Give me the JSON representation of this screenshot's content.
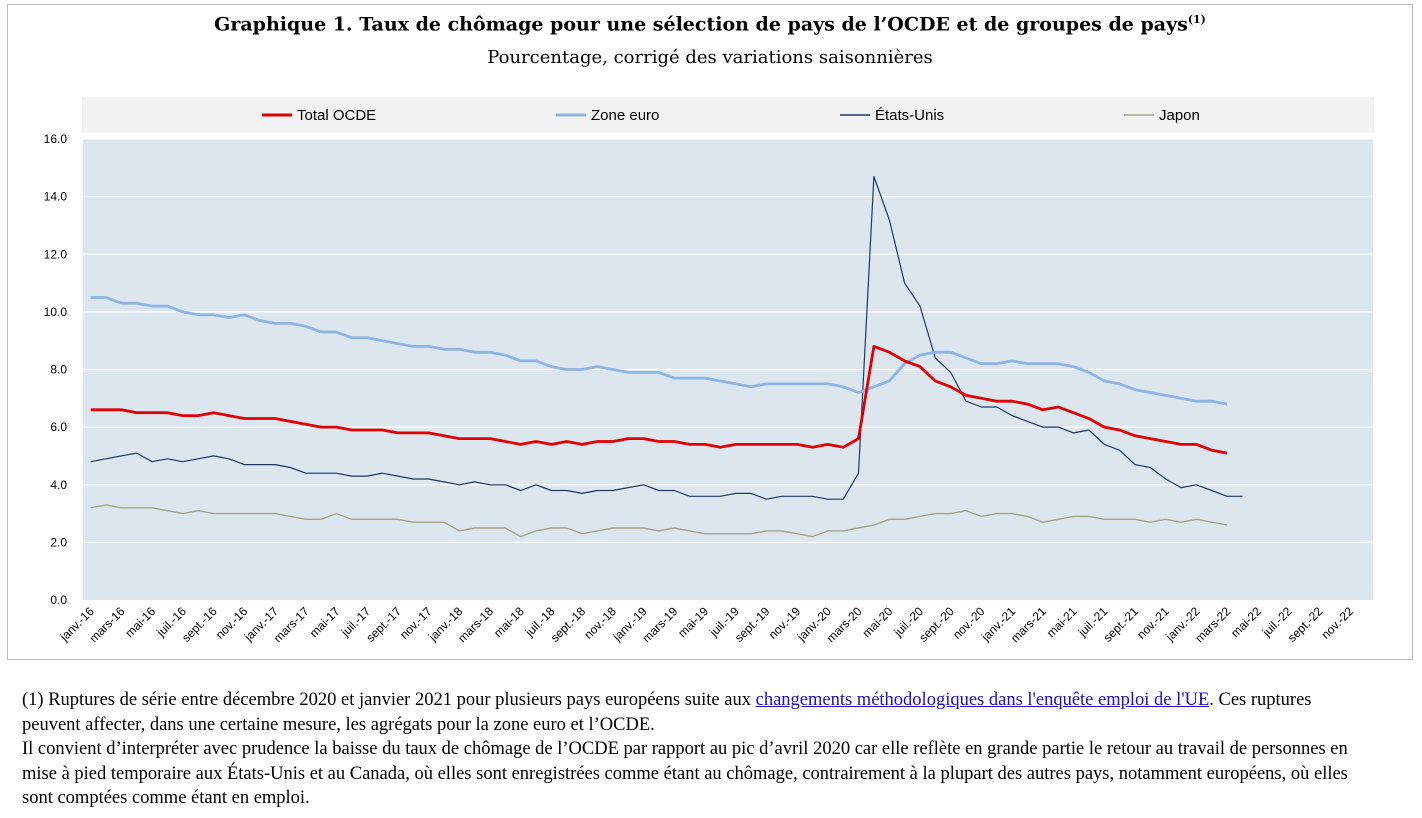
{
  "title": "Graphique 1. Taux de chômage pour une sélection de pays de l’OCDE et de groupes de pays",
  "title_superscript": "(1)",
  "subtitle": "Pourcentage, corrigé des variations saisonnières",
  "colors": {
    "total_ocde": "#e00000",
    "zone_euro": "#8db4e2",
    "etats_unis": "#1f3864",
    "japon": "#a6a384",
    "plot_bg": "#dce6ef",
    "legend_bg": "#f2f2f2"
  },
  "chart_data": {
    "type": "line",
    "ylim": [
      0,
      16
    ],
    "yticks": [
      "0.0",
      "2.0",
      "4.0",
      "6.0",
      "8.0",
      "10.0",
      "12.0",
      "14.0",
      "16.0"
    ],
    "grid": true,
    "legend_position": "top",
    "xtick_labels": [
      "janv.-16",
      "mars-16",
      "mai-16",
      "juil.-16",
      "sept.-16",
      "nov.-16",
      "janv.-17",
      "mars-17",
      "mai-17",
      "juil.-17",
      "sept.-17",
      "nov.-17",
      "janv.-18",
      "mars-18",
      "mai-18",
      "juil.-18",
      "sept.-18",
      "nov.-18",
      "janv.-19",
      "mars-19",
      "mai-19",
      "juil.-19",
      "sept.-19",
      "nov.-19",
      "janv.-20",
      "mars-20",
      "mai-20",
      "juil.-20",
      "sept.-20",
      "nov.-20",
      "janv.-21",
      "mars-21",
      "mai-21",
      "juil.-21",
      "sept.-21",
      "nov.-21",
      "janv.-22",
      "mars-22",
      "mai-22",
      "juil.-22",
      "sept.-22",
      "nov.-22"
    ],
    "series": [
      {
        "name": "Total OCDE",
        "values": [
          6.6,
          6.6,
          6.6,
          6.5,
          6.5,
          6.5,
          6.4,
          6.4,
          6.5,
          6.4,
          6.3,
          6.3,
          6.3,
          6.2,
          6.1,
          6.0,
          6.0,
          5.9,
          5.9,
          5.9,
          5.8,
          5.8,
          5.8,
          5.7,
          5.6,
          5.6,
          5.6,
          5.5,
          5.4,
          5.5,
          5.4,
          5.5,
          5.4,
          5.5,
          5.5,
          5.6,
          5.6,
          5.5,
          5.5,
          5.4,
          5.4,
          5.3,
          5.4,
          5.4,
          5.4,
          5.4,
          5.4,
          5.3,
          5.4,
          5.3,
          5.6,
          8.8,
          8.6,
          8.3,
          8.1,
          7.6,
          7.4,
          7.1,
          7.0,
          6.9,
          6.9,
          6.8,
          6.6,
          6.7,
          6.5,
          6.3,
          6.0,
          5.9,
          5.7,
          5.6,
          5.5,
          5.4,
          5.4,
          5.2,
          5.1
        ]
      },
      {
        "name": "Zone euro",
        "values": [
          10.5,
          10.5,
          10.3,
          10.3,
          10.2,
          10.2,
          10.0,
          9.9,
          9.9,
          9.8,
          9.9,
          9.7,
          9.6,
          9.6,
          9.5,
          9.3,
          9.3,
          9.1,
          9.1,
          9.0,
          8.9,
          8.8,
          8.8,
          8.7,
          8.7,
          8.6,
          8.6,
          8.5,
          8.3,
          8.3,
          8.1,
          8.0,
          8.0,
          8.1,
          8.0,
          7.9,
          7.9,
          7.9,
          7.7,
          7.7,
          7.7,
          7.6,
          7.5,
          7.4,
          7.5,
          7.5,
          7.5,
          7.5,
          7.5,
          7.4,
          7.2,
          7.4,
          7.6,
          8.2,
          8.5,
          8.6,
          8.6,
          8.4,
          8.2,
          8.2,
          8.3,
          8.2,
          8.2,
          8.2,
          8.1,
          7.9,
          7.6,
          7.5,
          7.3,
          7.2,
          7.1,
          7.0,
          6.9,
          6.9,
          6.8
        ]
      },
      {
        "name": "États-Unis",
        "values": [
          4.8,
          4.9,
          5.0,
          5.1,
          4.8,
          4.9,
          4.8,
          4.9,
          5.0,
          4.9,
          4.7,
          4.7,
          4.7,
          4.6,
          4.4,
          4.4,
          4.4,
          4.3,
          4.3,
          4.4,
          4.3,
          4.2,
          4.2,
          4.1,
          4.0,
          4.1,
          4.0,
          4.0,
          3.8,
          4.0,
          3.8,
          3.8,
          3.7,
          3.8,
          3.8,
          3.9,
          4.0,
          3.8,
          3.8,
          3.6,
          3.6,
          3.6,
          3.7,
          3.7,
          3.5,
          3.6,
          3.6,
          3.6,
          3.5,
          3.5,
          4.4,
          14.7,
          13.2,
          11.0,
          10.2,
          8.4,
          7.9,
          6.9,
          6.7,
          6.7,
          6.4,
          6.2,
          6.0,
          6.0,
          5.8,
          5.9,
          5.4,
          5.2,
          4.7,
          4.6,
          4.2,
          3.9,
          4.0,
          3.8,
          3.6,
          3.6
        ]
      },
      {
        "name": "Japon",
        "values": [
          3.2,
          3.3,
          3.2,
          3.2,
          3.2,
          3.1,
          3.0,
          3.1,
          3.0,
          3.0,
          3.0,
          3.0,
          3.0,
          2.9,
          2.8,
          2.8,
          3.0,
          2.8,
          2.8,
          2.8,
          2.8,
          2.7,
          2.7,
          2.7,
          2.4,
          2.5,
          2.5,
          2.5,
          2.2,
          2.4,
          2.5,
          2.5,
          2.3,
          2.4,
          2.5,
          2.5,
          2.5,
          2.4,
          2.5,
          2.4,
          2.3,
          2.3,
          2.3,
          2.3,
          2.4,
          2.4,
          2.3,
          2.2,
          2.4,
          2.4,
          2.5,
          2.6,
          2.8,
          2.8,
          2.9,
          3.0,
          3.0,
          3.1,
          2.9,
          3.0,
          3.0,
          2.9,
          2.7,
          2.8,
          2.9,
          2.9,
          2.8,
          2.8,
          2.8,
          2.7,
          2.8,
          2.7,
          2.8,
          2.7,
          2.6
        ]
      }
    ]
  },
  "notes": {
    "note1_before_link": "(1) Ruptures de série entre décembre 2020 et janvier 2021 pour plusieurs pays européens suite aux ",
    "note1_link": "changements méthodologiques dans l'enquête emploi de l'UE",
    "note1_after_link": ". Ces ruptures peuvent affecter, dans une certaine mesure, les agrégats pour la zone euro et l’OCDE.",
    "note2": "Il convient d’interpréter avec prudence la baisse du taux de chômage de l’OCDE par rapport au pic d’avril 2020 car elle reflète en grande partie le retour au travail de personnes en mise à pied temporaire aux États-Unis et au Canada, où elles sont enregistrées comme étant au chômage, contrairement à la plupart des autres pays, notamment européens, où elles sont comptées comme étant en emploi."
  }
}
